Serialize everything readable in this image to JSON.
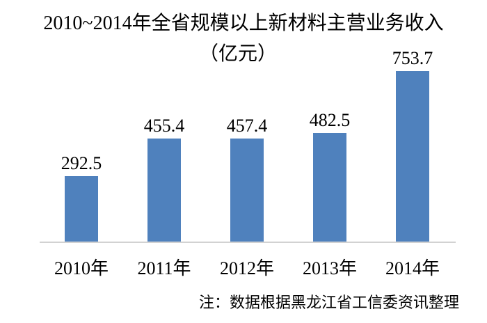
{
  "chart_data": {
    "type": "bar",
    "title": "2010~2014年全省规模以上新材料主营业务收入",
    "subtitle": "（亿元）",
    "unit": "亿元",
    "categories": [
      "2010年",
      "2011年",
      "2012年",
      "2013年",
      "2014年"
    ],
    "values": [
      292.5,
      455.4,
      457.4,
      482.5,
      753.7
    ],
    "value_labels": [
      "292.5",
      "455.4",
      "457.4",
      "482.5",
      "753.7"
    ],
    "ylim": [
      0,
      800
    ],
    "grid": false,
    "legend_position": "none",
    "bar_color": "#4F81BD",
    "axis_line_color": "#D2D2D2",
    "text_color": "#000000",
    "note": "注：数据根据黑龙江省工信委资讯整理"
  }
}
